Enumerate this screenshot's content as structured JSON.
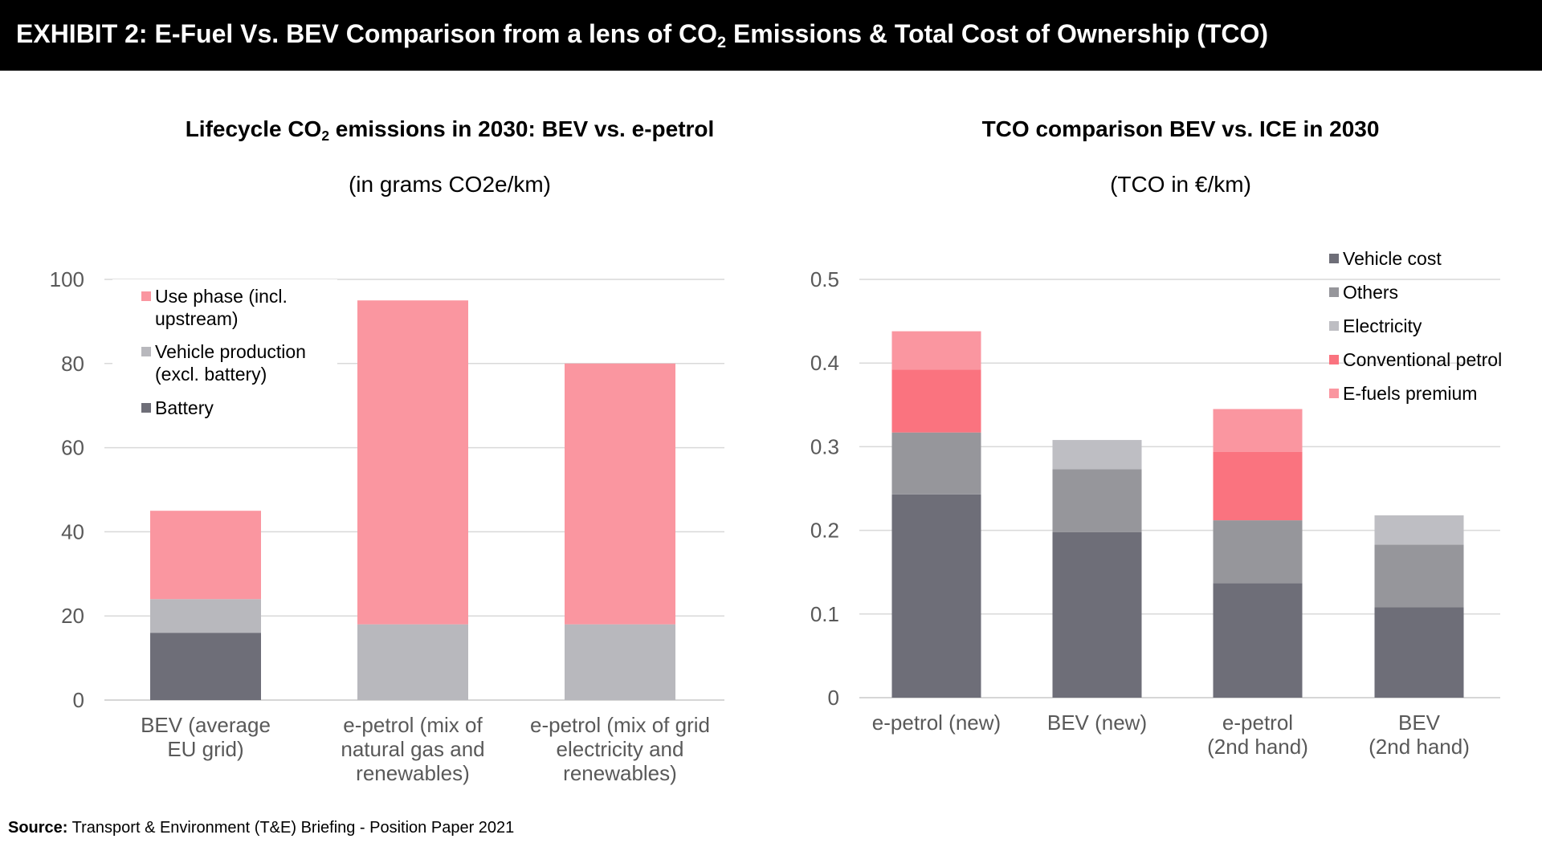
{
  "header": {
    "title_pre": "EXHIBIT 2: E-Fuel Vs. BEV Comparison from a lens of CO",
    "title_sub": "2",
    "title_post": " Emissions & Total Cost of Ownership (TCO)"
  },
  "left_chart": {
    "title_pre": "Lifecycle CO",
    "title_sub": "2",
    "title_post": " emissions in 2030: BEV vs. e-petrol",
    "subtitle": "(in grams CO2e/km)"
  },
  "right_chart": {
    "title": "TCO comparison BEV vs. ICE in 2030",
    "subtitle": "(TCO in €/km)"
  },
  "source": {
    "label": "Source:",
    "text": " Transport & Environment (T&E) Briefing - Position Paper 2021"
  },
  "colors": {
    "battery": "#6e6e78",
    "vehicle_production": "#b8b8bd",
    "use_phase": "#fa96a0",
    "vehicle_cost": "#6e6e78",
    "others": "#96969b",
    "electricity": "#bebec3",
    "conventional_petrol": "#fa737f",
    "efuels_premium": "#fa96a0"
  },
  "chart_data": [
    {
      "type": "bar",
      "stacked": true,
      "title": "Lifecycle CO2 emissions in 2030: BEV vs. e-petrol",
      "subtitle": "(in grams CO2e/km)",
      "categories": [
        [
          "BEV (average",
          "EU grid)"
        ],
        [
          "e-petrol (mix of",
          "natural gas and",
          "renewables)"
        ],
        [
          "e-petrol (mix of grid",
          "electricity and",
          "renewables)"
        ]
      ],
      "series": [
        {
          "name": "Battery",
          "color": "#6e6e78",
          "values": [
            16,
            0,
            0
          ]
        },
        {
          "name": "Vehicle production (excl. battery)",
          "legend_lines": [
            "Vehicle production",
            "(excl. battery)"
          ],
          "color": "#b8b8bd",
          "values": [
            8,
            18,
            18
          ]
        },
        {
          "name": "Use phase (incl. upstream)",
          "legend_lines": [
            "Use phase (incl.",
            "upstream)"
          ],
          "color": "#fa96a0",
          "values": [
            21,
            77,
            62
          ]
        }
      ],
      "legend_order": [
        2,
        1,
        0
      ],
      "ylim": [
        0,
        100
      ],
      "yticks": [
        0,
        20,
        40,
        60,
        80,
        100
      ],
      "ytick_labels": [
        "0",
        "20",
        "40",
        "60",
        "80",
        "100"
      ],
      "grid": true,
      "legend_position": "top-left"
    },
    {
      "type": "bar",
      "stacked": true,
      "title": "TCO comparison BEV vs. ICE in 2030",
      "subtitle": "(TCO in €/km)",
      "categories": [
        [
          "e-petrol (new)"
        ],
        [
          "BEV (new)"
        ],
        [
          "e-petrol",
          "(2nd hand)"
        ],
        [
          "BEV",
          "(2nd hand)"
        ]
      ],
      "series": [
        {
          "name": "Vehicle cost",
          "color": "#6e6e78",
          "values": [
            0.243,
            0.198,
            0.137,
            0.108
          ]
        },
        {
          "name": "Others",
          "color": "#96969b",
          "values": [
            0.074,
            0.075,
            0.075,
            0.075
          ]
        },
        {
          "name": "Electricity",
          "color": "#bebec3",
          "values": [
            0,
            0.035,
            0,
            0.035
          ]
        },
        {
          "name": "Conventional petrol",
          "color": "#fa737f",
          "values": [
            0.075,
            0,
            0.082,
            0
          ]
        },
        {
          "name": "E-fuels premium",
          "color": "#fa96a0",
          "values": [
            0.046,
            0,
            0.051,
            0
          ]
        }
      ],
      "legend_order": [
        0,
        1,
        2,
        3,
        4
      ],
      "ylim": [
        0,
        0.5
      ],
      "yticks": [
        0,
        0.1,
        0.2,
        0.3,
        0.4,
        0.5
      ],
      "ytick_labels": [
        "0",
        "0.1",
        "0.2",
        "0.3",
        "0.4",
        "0.5"
      ],
      "grid": true,
      "legend_position": "top-right"
    }
  ]
}
